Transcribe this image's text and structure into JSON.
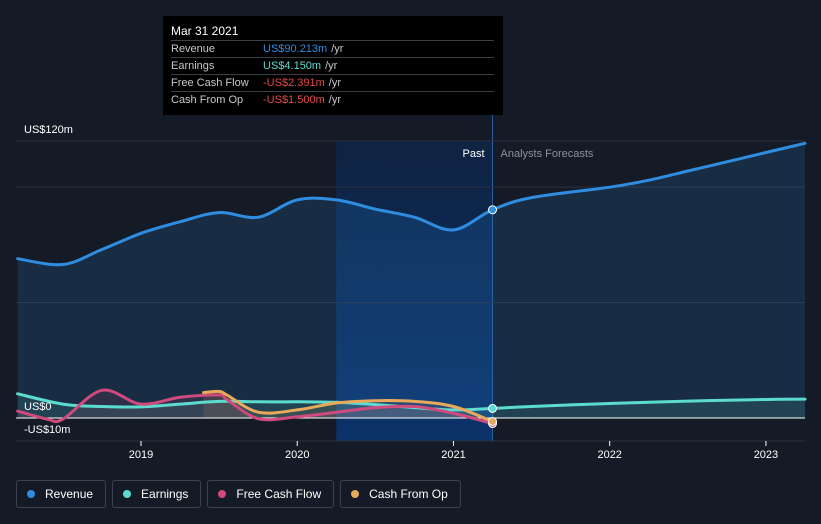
{
  "tooltip": {
    "date": "Mar 31 2021",
    "rows": [
      {
        "label": "Revenue",
        "value": "US$90.213m",
        "unit": "/yr",
        "color": "#2e8de1"
      },
      {
        "label": "Earnings",
        "value": "US$4.150m",
        "unit": "/yr",
        "color": "#5cdcd0"
      },
      {
        "label": "Free Cash Flow",
        "value": "-US$2.391m",
        "unit": "/yr",
        "color": "#e84848"
      },
      {
        "label": "Cash From Op",
        "value": "-US$1.500m",
        "unit": "/yr",
        "color": "#e84848"
      }
    ]
  },
  "legend": [
    {
      "label": "Revenue",
      "color": "#2e8de1"
    },
    {
      "label": "Earnings",
      "color": "#5cdcd0"
    },
    {
      "label": "Free Cash Flow",
      "color": "#d14a7e"
    },
    {
      "label": "Cash From Op",
      "color": "#e8a95a"
    }
  ],
  "chart_data": {
    "type": "line",
    "ylabels": {
      "top": "US$120m",
      "zero": "US$0",
      "bottom": "-US$10m"
    },
    "ylim": [
      -10,
      120
    ],
    "xlim": [
      2018.2,
      2023.25
    ],
    "xticks": [
      2019,
      2020,
      2021,
      2022,
      2023
    ],
    "past_label": "Past",
    "forecast_label": "Analysts Forecasts",
    "divider_x": 2021.25,
    "highlight_start": 2020.25,
    "series": [
      {
        "name": "Revenue",
        "color": "#2e8de1",
        "fill": true,
        "x": [
          2018.21,
          2018.5,
          2018.75,
          2019.0,
          2019.25,
          2019.5,
          2019.75,
          2020.0,
          2020.25,
          2020.5,
          2020.75,
          2021.0,
          2021.25,
          2021.5,
          2022.0,
          2022.25,
          2022.5,
          2022.75,
          2023.0,
          2023.25
        ],
        "y": [
          69,
          66.5,
          73,
          80,
          85,
          89,
          87,
          94.5,
          94.5,
          90.5,
          87,
          81.5,
          90.2,
          95.5,
          100,
          103,
          107,
          111,
          115,
          119
        ]
      },
      {
        "name": "Earnings",
        "color": "#5cdcd0",
        "fill": false,
        "x": [
          2018.21,
          2018.5,
          2018.75,
          2019.0,
          2019.25,
          2019.5,
          2019.75,
          2020.0,
          2020.25,
          2020.5,
          2020.75,
          2021.0,
          2021.25,
          2021.5,
          2022.0,
          2022.25,
          2022.5,
          2022.75,
          2023.0,
          2023.25
        ],
        "y": [
          10.5,
          6,
          5,
          4.8,
          6,
          7.2,
          7,
          7,
          6.8,
          5.8,
          4.5,
          3.5,
          4.15,
          5,
          6.3,
          6.8,
          7.3,
          7.7,
          8,
          8.2
        ]
      },
      {
        "name": "Free Cash Flow",
        "color": "#d14a7e",
        "fill": false,
        "x": [
          2018.21,
          2018.4,
          2018.5,
          2018.75,
          2019.0,
          2019.25,
          2019.5,
          2019.55,
          2019.75,
          2020.0,
          2020.25,
          2020.5,
          2020.75,
          2021.0,
          2021.25
        ],
        "y": [
          3,
          -0.5,
          -0.5,
          12,
          6,
          9,
          10,
          8,
          -0.3,
          0.5,
          2.5,
          4.5,
          5,
          2,
          -2.39
        ]
      },
      {
        "name": "Cash From Op",
        "color": "#e8a95a",
        "fill": false,
        "x": [
          2019.4,
          2019.5,
          2019.55,
          2019.75,
          2020.0,
          2020.25,
          2020.5,
          2020.75,
          2021.0,
          2021.25
        ],
        "y": [
          11,
          11.5,
          10,
          2.5,
          3.5,
          6.5,
          7.5,
          7.2,
          5,
          -1.5
        ]
      }
    ],
    "markers": [
      {
        "x": 2021.25,
        "y": 90.2,
        "color": "#2e8de1"
      },
      {
        "x": 2021.25,
        "y": 4.15,
        "color": "#5cdcd0"
      },
      {
        "x": 2021.25,
        "y": -2.39,
        "color": "#d14a7e"
      },
      {
        "x": 2021.25,
        "y": -1.5,
        "color": "#e8a95a"
      }
    ]
  }
}
